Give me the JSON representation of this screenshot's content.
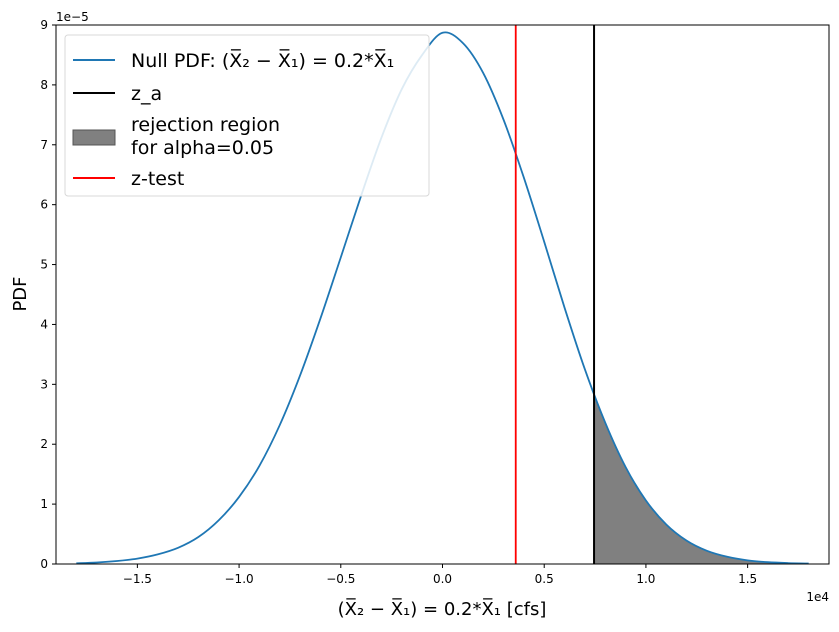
{
  "chart_data": {
    "type": "line",
    "xlabel": "(X̅₂ − X̅₁) = 0.2*X̅₁ [cfs]",
    "ylabel": "PDF",
    "x_offset_text": "1e4",
    "y_offset_text": "1e−5",
    "xlim": [
      -19000,
      19000
    ],
    "ylim": [
      0,
      9e-05
    ],
    "x_ticks": [
      {
        "value": -15000,
        "label": "−1.5"
      },
      {
        "value": -10000,
        "label": "−1.0"
      },
      {
        "value": -5000,
        "label": "−0.5"
      },
      {
        "value": 0,
        "label": "0.0"
      },
      {
        "value": 5000,
        "label": "0.5"
      },
      {
        "value": 10000,
        "label": "1.0"
      },
      {
        "value": 15000,
        "label": "1.5"
      }
    ],
    "y_ticks": [
      {
        "value": 0,
        "label": "0"
      },
      {
        "value": 1e-05,
        "label": "1"
      },
      {
        "value": 2e-05,
        "label": "2"
      },
      {
        "value": 3e-05,
        "label": "3"
      },
      {
        "value": 4e-05,
        "label": "4"
      },
      {
        "value": 5e-05,
        "label": "5"
      },
      {
        "value": 6e-05,
        "label": "6"
      },
      {
        "value": 7e-05,
        "label": "7"
      },
      {
        "value": 8e-05,
        "label": "8"
      },
      {
        "value": 9e-05,
        "label": "9"
      }
    ],
    "null_pdf": {
      "name": "Null PDF: (X̅₂ − X̅₁) = 0.2*X̅₁",
      "color": "#1f77b4",
      "x": [
        -18000,
        -17000,
        -16000,
        -15000,
        -14000,
        -13000,
        -12000,
        -11000,
        -10000,
        -9000,
        -8000,
        -7000,
        -6000,
        -5000,
        -4000,
        -3000,
        -2000,
        -1000,
        0,
        1000,
        2000,
        3000,
        4000,
        5000,
        6000,
        7000,
        8000,
        9000,
        10000,
        11000,
        12000,
        13000,
        14000,
        15000,
        16000,
        17000,
        18000
      ],
      "y": [
        1.2e-07,
        2.5e-07,
        5e-07,
        9e-07,
        1.6e-06,
        2.7e-06,
        4.5e-06,
        7.3e-06,
        1.12e-05,
        1.64e-05,
        2.32e-05,
        3.15e-05,
        4.1e-05,
        5.12e-05,
        6.15e-05,
        7.12e-05,
        7.93e-05,
        8.5e-05,
        8.87e-05,
        8.7e-05,
        8.2e-05,
        7.42e-05,
        6.45e-05,
        5.38e-05,
        4.28e-05,
        3.25e-05,
        2.36e-05,
        1.62e-05,
        1.06e-05,
        6.6e-06,
        3.9e-06,
        2.2e-06,
        1.2e-06,
        6e-07,
        3e-07,
        1.5e-07,
        7e-08
      ]
    },
    "z_a": {
      "name": "z_a",
      "value": 7450,
      "color": "#000000"
    },
    "rejection_region": {
      "name_line1": "rejection region",
      "name_line2": "for alpha=0.05",
      "color": "#808080",
      "x_start": 7450
    },
    "z_test": {
      "name": "z-test",
      "value": 3600,
      "color": "#ff0000"
    },
    "legend_position": "upper-left",
    "grid": false
  }
}
